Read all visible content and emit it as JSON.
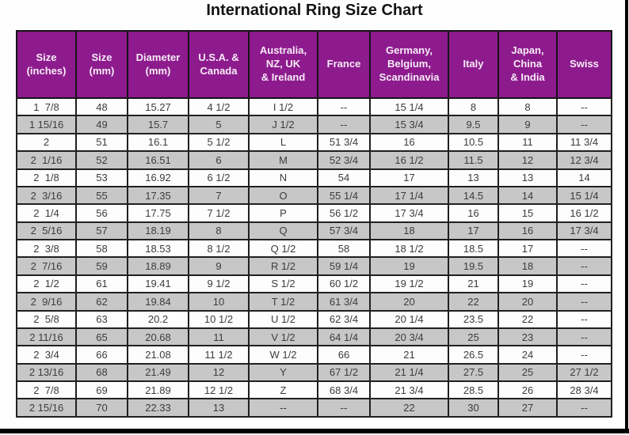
{
  "page": {
    "title": "International Ring Size Chart"
  },
  "colors": {
    "header_bg": "#8E1B8E",
    "header_text": "#F6ECF6",
    "row_alt_bg": "#C7C7C7",
    "row_bg": "#FDFDFD",
    "border": "#202020",
    "body_text": "#3C3C3C"
  },
  "chart_data": {
    "type": "table",
    "title": "International Ring Size Chart",
    "columns": [
      "Size\n(inches)",
      "Size\n(mm)",
      "Diameter\n(mm)",
      "U.S.A. &\nCanada",
      "Australia,\nNZ, UK\n& Ireland",
      "France",
      "Germany,\nBelgium,\nScandinavia",
      "Italy",
      "Japan,\nChina\n& India",
      "Swiss"
    ],
    "rows": [
      [
        "1  7/8",
        "48",
        "15.27",
        "4 1/2",
        "I 1/2",
        "--",
        "15 1/4",
        "8",
        "8",
        "--"
      ],
      [
        "1 15/16",
        "49",
        "15.7",
        "5",
        "J 1/2",
        "--",
        "15 3/4",
        "9.5",
        "9",
        "--"
      ],
      [
        "2",
        "51",
        "16.1",
        "5 1/2",
        "L",
        "51 3/4",
        "16",
        "10.5",
        "11",
        "11 3/4"
      ],
      [
        "2  1/16",
        "52",
        "16.51",
        "6",
        "M",
        "52 3/4",
        "16 1/2",
        "11.5",
        "12",
        "12 3/4"
      ],
      [
        "2  1/8",
        "53",
        "16.92",
        "6 1/2",
        "N",
        "54",
        "17",
        "13",
        "13",
        "14"
      ],
      [
        "2  3/16",
        "55",
        "17.35",
        "7",
        "O",
        "55 1/4",
        "17 1/4",
        "14.5",
        "14",
        "15 1/4"
      ],
      [
        "2  1/4",
        "56",
        "17.75",
        "7 1/2",
        "P",
        "56 1/2",
        "17 3/4",
        "16",
        "15",
        "16 1/2"
      ],
      [
        "2  5/16",
        "57",
        "18.19",
        "8",
        "Q",
        "57 3/4",
        "18",
        "17",
        "16",
        "17 3/4"
      ],
      [
        "2  3/8",
        "58",
        "18.53",
        "8 1/2",
        "Q 1/2",
        "58",
        "18 1/2",
        "18.5",
        "17",
        "--"
      ],
      [
        "2  7/16",
        "59",
        "18.89",
        "9",
        "R 1/2",
        "59 1/4",
        "19",
        "19.5",
        "18",
        "--"
      ],
      [
        "2  1/2",
        "61",
        "19.41",
        "9 1/2",
        "S 1/2",
        "60 1/2",
        "19 1/2",
        "21",
        "19",
        "--"
      ],
      [
        "2  9/16",
        "62",
        "19.84",
        "10",
        "T 1/2",
        "61 3/4",
        "20",
        "22",
        "20",
        "--"
      ],
      [
        "2  5/8",
        "63",
        "20.2",
        "10 1/2",
        "U 1/2",
        "62 3/4",
        "20 1/4",
        "23.5",
        "22",
        "--"
      ],
      [
        "2 11/16",
        "65",
        "20.68",
        "11",
        "V 1/2",
        "64 1/4",
        "20 3/4",
        "25",
        "23",
        "--"
      ],
      [
        "2  3/4",
        "66",
        "21.08",
        "11 1/2",
        "W 1/2",
        "66",
        "21",
        "26.5",
        "24",
        "--"
      ],
      [
        "2 13/16",
        "68",
        "21.49",
        "12",
        "Y",
        "67 1/2",
        "21 1/4",
        "27.5",
        "25",
        "27 1/2"
      ],
      [
        "2  7/8",
        "69",
        "21.89",
        "12 1/2",
        "Z",
        "68 3/4",
        "21 3/4",
        "28.5",
        "26",
        "28 3/4"
      ],
      [
        "2 15/16",
        "70",
        "22.33",
        "13",
        "--",
        "--",
        "22",
        "30",
        "27",
        "--"
      ]
    ]
  }
}
